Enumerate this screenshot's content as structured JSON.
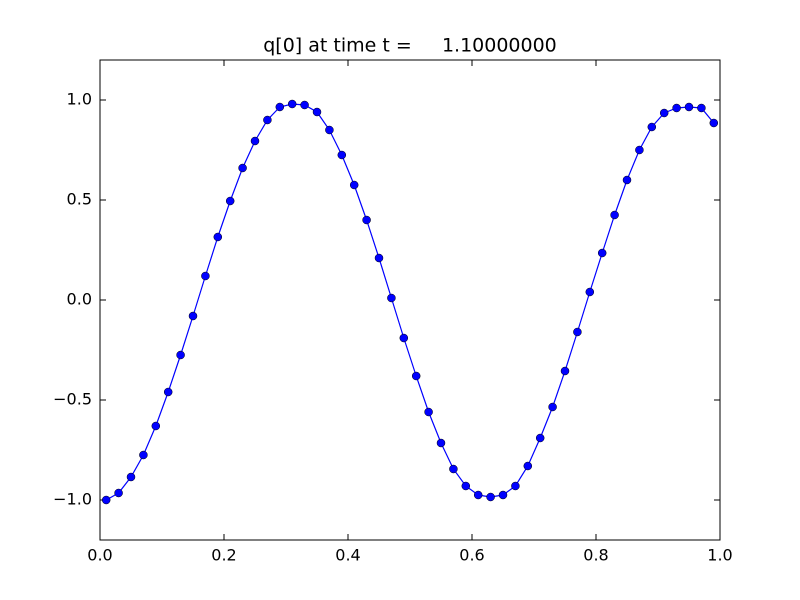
{
  "chart_data": {
    "type": "line",
    "title": "q[0] at time t =     1.10000000",
    "x": [
      0.01,
      0.03,
      0.05,
      0.07,
      0.09,
      0.11,
      0.13,
      0.15,
      0.17,
      0.19,
      0.21,
      0.23,
      0.25,
      0.27,
      0.29,
      0.31,
      0.33,
      0.35,
      0.37,
      0.39,
      0.41,
      0.43,
      0.45,
      0.47,
      0.49,
      0.51,
      0.53,
      0.55,
      0.57,
      0.59,
      0.61,
      0.63,
      0.65,
      0.67,
      0.69,
      0.71,
      0.73,
      0.75,
      0.77,
      0.79,
      0.81,
      0.83,
      0.85,
      0.87,
      0.89,
      0.91,
      0.93,
      0.95,
      0.97,
      0.99
    ],
    "series": [
      {
        "color": "#0000ff",
        "values": [
          -1.0,
          -0.965,
          -0.885,
          -0.775,
          -0.63,
          -0.46,
          -0.275,
          -0.08,
          0.12,
          0.315,
          0.495,
          0.66,
          0.795,
          0.9,
          0.965,
          0.98,
          0.975,
          0.94,
          0.85,
          0.725,
          0.575,
          0.4,
          0.21,
          0.01,
          -0.19,
          -0.38,
          -0.56,
          -0.715,
          -0.845,
          -0.93,
          -0.975,
          -0.985,
          -0.975,
          -0.93,
          -0.83,
          -0.69,
          -0.535,
          -0.355,
          -0.16,
          0.04,
          0.235,
          0.425,
          0.6,
          0.75,
          0.865,
          0.935,
          0.96,
          0.965,
          0.96,
          0.885
        ]
      }
    ],
    "xlim": [
      0,
      1
    ],
    "ylim": [
      -1.2,
      1.2
    ],
    "xticks": [
      {
        "value": 0,
        "label": "0.0"
      },
      0.2,
      0.4,
      0.6,
      0.8,
      {
        "value": 1,
        "label": "1.0"
      }
    ],
    "yticks": [
      {
        "value": -1,
        "label": "−1.0"
      },
      {
        "value": -0.5,
        "label": "−0.5"
      },
      {
        "value": 0,
        "label": "0.0"
      },
      0.5,
      {
        "value": 1,
        "label": "1.0"
      }
    ],
    "grid": false
  }
}
